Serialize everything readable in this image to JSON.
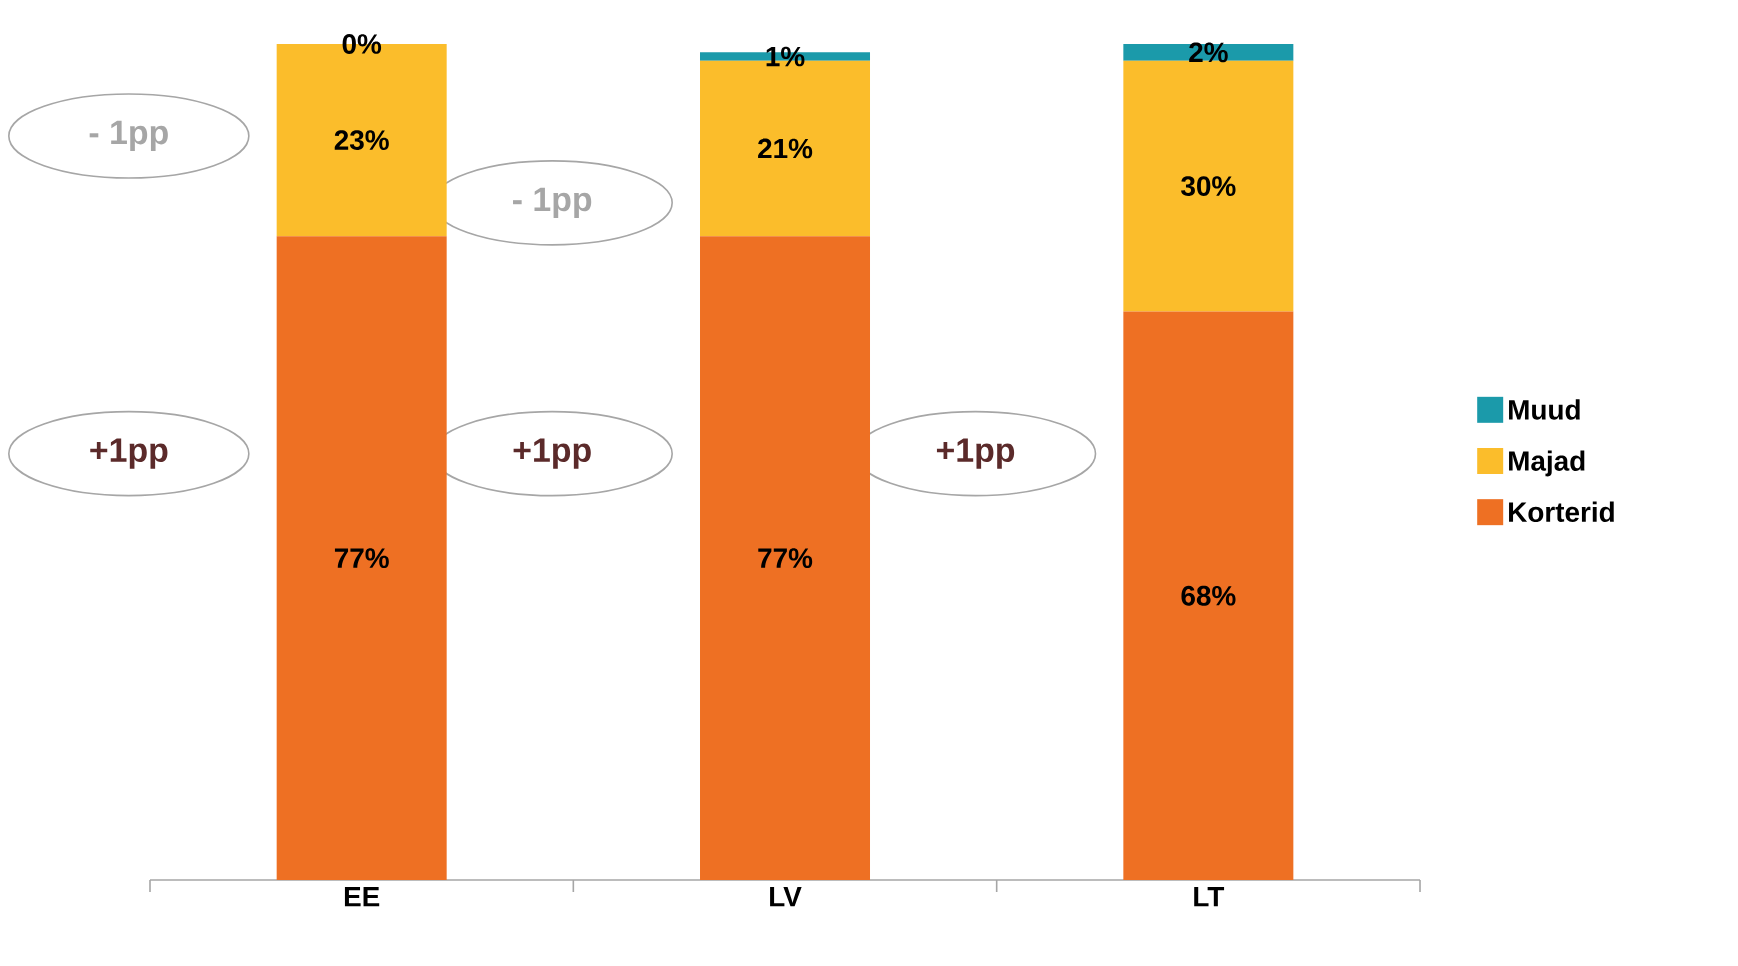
{
  "chart_data": {
    "type": "bar",
    "stacked": true,
    "categories": [
      "EE",
      "LV",
      "LT"
    ],
    "series": [
      {
        "name": "Korterid",
        "color": "#ee7023",
        "values": [
          77,
          77,
          68
        ],
        "value_labels": [
          "77%",
          "77%",
          "68%"
        ]
      },
      {
        "name": "Majad",
        "color": "#fbbd2b",
        "values": [
          23,
          21,
          30
        ],
        "value_labels": [
          "23%",
          "21%",
          "30%"
        ]
      },
      {
        "name": "Muud",
        "color": "#1b9aaa",
        "values": [
          0,
          1,
          2
        ],
        "value_labels": [
          "0%",
          "1%",
          "2%"
        ]
      }
    ],
    "legend": "right",
    "annotations": [
      "- 1pp",
      "+1pp",
      "- 1pp",
      "+1pp",
      "+1pp"
    ]
  }
}
